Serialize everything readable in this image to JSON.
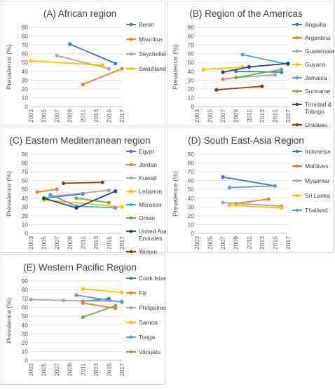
{
  "colors": {
    "blue": "#4472C4",
    "orange": "#ED7D31",
    "gray": "#A5A5A5",
    "gold": "#FFC000",
    "lightblue": "#5B9BD5",
    "green": "#70AD47",
    "navy": "#264478",
    "brown": "#843C0C"
  },
  "chart_data": [
    {
      "type": "line",
      "title": "(A) African region",
      "ylabel": "Prevalence (%)",
      "ylim": [
        0,
        90
      ],
      "yticks": [
        "0",
        "10",
        "20",
        "30",
        "40",
        "50",
        "60",
        "70",
        "80",
        "90"
      ],
      "xticks": [
        "2003",
        "2005",
        "2007",
        "2009",
        "2011",
        "2013",
        "2015",
        "2017"
      ],
      "legend": "right",
      "series": [
        {
          "name": "Benin",
          "color": "blue",
          "points": [
            [
              2009,
              71
            ],
            [
              2016,
              49
            ]
          ]
        },
        {
          "name": "Mauritius",
          "color": "orange",
          "points": [
            [
              2011,
              25
            ],
            [
              2017,
              43
            ]
          ]
        },
        {
          "name": "Seychelles",
          "color": "gray",
          "points": [
            [
              2007,
              58
            ],
            [
              2015,
              43
            ]
          ]
        },
        {
          "name": "Swaziland",
          "color": "gold",
          "points": [
            [
              2003,
              52
            ],
            [
              2014,
              47
            ]
          ]
        }
      ]
    },
    {
      "type": "line",
      "title": "(B) Region of the Americas",
      "ylabel": "Prevalence (%)",
      "ylim": [
        0,
        90
      ],
      "yticks": [
        "0",
        "10",
        "20",
        "30",
        "40",
        "50",
        "60",
        "70",
        "80",
        "90"
      ],
      "xticks": [
        "2003",
        "2005",
        "2007",
        "2009",
        "2011",
        "2013",
        "2015",
        "2017"
      ],
      "legend": "right",
      "series": [
        {
          "name": "Anguilla",
          "color": "blue",
          "points": [
            [
              2009,
              40
            ],
            [
              2016,
              39
            ]
          ]
        },
        {
          "name": "Argentina",
          "color": "orange",
          "points": [
            [
              2007,
              31
            ],
            [
              2009,
              33
            ]
          ]
        },
        {
          "name": "Guatemala",
          "color": "gray",
          "points": [
            [
              2009,
              33
            ],
            [
              2015,
              36
            ]
          ]
        },
        {
          "name": "Guyana",
          "color": "gold",
          "points": [
            [
              2004,
              42
            ],
            [
              2010,
              45
            ]
          ]
        },
        {
          "name": "Jamaica",
          "color": "lightblue",
          "points": [
            [
              2010,
              59
            ],
            [
              2017,
              48
            ]
          ]
        },
        {
          "name": "Suriname",
          "color": "green",
          "points": [
            [
              2009,
              33
            ],
            [
              2016,
              42
            ]
          ]
        },
        {
          "name": "Trinidad & Tobago",
          "color": "navy",
          "points": [
            [
              2007,
              39
            ],
            [
              2011,
              45
            ],
            [
              2017,
              49
            ]
          ]
        },
        {
          "name": "Uruguay",
          "color": "brown",
          "points": [
            [
              2006,
              19
            ],
            [
              2013,
              23
            ]
          ]
        }
      ]
    },
    {
      "type": "line",
      "title": "(C) Eastern Mediterranean region",
      "ylabel": "Prevalence (%)",
      "ylim": [
        0,
        90
      ],
      "yticks": [
        "0",
        "10",
        "20",
        "30",
        "40",
        "50",
        "60",
        "70",
        "80",
        "90"
      ],
      "xticks": [
        "2003",
        "2005",
        "2007",
        "2009",
        "2011",
        "2013",
        "2015",
        "2017"
      ],
      "legend": "right",
      "series": [
        {
          "name": "Egypt",
          "color": "blue",
          "points": [
            [
              2005,
              40
            ],
            [
              2011,
              45
            ]
          ]
        },
        {
          "name": "Jordan",
          "color": "orange",
          "points": [
            [
              2004,
              47
            ],
            [
              2007,
              50
            ]
          ]
        },
        {
          "name": "Kuwait",
          "color": "gray",
          "points": [
            [
              2006,
              42
            ],
            [
              2015,
              49
            ]
          ]
        },
        {
          "name": "Lebanon",
          "color": "gold",
          "points": [
            [
              2005,
              38
            ],
            [
              2017,
              30
            ]
          ]
        },
        {
          "name": "Morocco",
          "color": "lightblue",
          "points": [
            [
              2006,
              44
            ],
            [
              2010,
              31
            ],
            [
              2016,
              29
            ]
          ]
        },
        {
          "name": "Oman",
          "color": "green",
          "points": [
            [
              2010,
              40
            ],
            [
              2015,
              35
            ]
          ]
        },
        {
          "name": "United Arab Emirates",
          "color": "navy",
          "points": [
            [
              2005,
              40
            ],
            [
              2010,
              29
            ],
            [
              2016,
              48
            ]
          ]
        },
        {
          "name": "Yemen",
          "color": "brown",
          "points": [
            [
              2008,
              57
            ],
            [
              2014,
              58
            ]
          ]
        }
      ]
    },
    {
      "type": "line",
      "title": "(D) South East-Asia Region",
      "ylabel": "Prevalence (%)",
      "ylim": [
        0,
        90
      ],
      "yticks": [
        "0",
        "10",
        "20",
        "30",
        "40",
        "50",
        "60",
        "70",
        "80",
        "90"
      ],
      "xticks": [
        "2003",
        "2005",
        "2007",
        "2009",
        "2011",
        "2013",
        "2015",
        "2017"
      ],
      "legend": "right",
      "series": [
        {
          "name": "Indonesia",
          "color": "blue",
          "points": [
            [
              2007,
              64
            ],
            [
              2015,
              54
            ]
          ]
        },
        {
          "name": "Maldives",
          "color": "orange",
          "points": [
            [
              2009,
              34
            ],
            [
              2014,
              39
            ]
          ]
        },
        {
          "name": "Myanmar",
          "color": "gray",
          "points": [
            [
              2007,
              35
            ],
            [
              2016,
              31
            ]
          ]
        },
        {
          "name": "Sri Lanka",
          "color": "gold",
          "points": [
            [
              2008,
              32
            ],
            [
              2016,
              29
            ]
          ]
        },
        {
          "name": "Thailand",
          "color": "lightblue",
          "points": [
            [
              2008,
              52
            ],
            [
              2015,
              54
            ]
          ]
        }
      ]
    },
    {
      "type": "line",
      "title": "(E) Western Pacific Region",
      "ylabel": "Prevalence (%)",
      "ylim": [
        0,
        90
      ],
      "yticks": [
        "0",
        "10",
        "20",
        "30",
        "40",
        "50",
        "60",
        "70",
        "80",
        "90"
      ],
      "xticks": [
        "2003",
        "2005",
        "2007",
        "2009",
        "2011",
        "2013",
        "2015",
        "2017"
      ],
      "legend": "right",
      "series": [
        {
          "name": "Cook Islands",
          "color": "blue",
          "points": [
            [
              2011,
              67
            ],
            [
              2015,
              70
            ]
          ]
        },
        {
          "name": "Fiji",
          "color": "orange",
          "points": [
            [
              2011,
              65
            ],
            [
              2016,
              59
            ]
          ]
        },
        {
          "name": "Philippines",
          "color": "gray",
          "points": [
            [
              2003,
              69
            ],
            [
              2008,
              68
            ],
            [
              2017,
              67
            ]
          ]
        },
        {
          "name": "Samoa",
          "color": "gold",
          "points": [
            [
              2011,
              81
            ],
            [
              2017,
              77
            ]
          ]
        },
        {
          "name": "Tonga",
          "color": "lightblue",
          "points": [
            [
              2010,
              74
            ],
            [
              2017,
              66
            ]
          ]
        },
        {
          "name": "Vanuatu",
          "color": "green",
          "points": [
            [
              2011,
              49
            ],
            [
              2016,
              62
            ]
          ]
        }
      ]
    }
  ]
}
